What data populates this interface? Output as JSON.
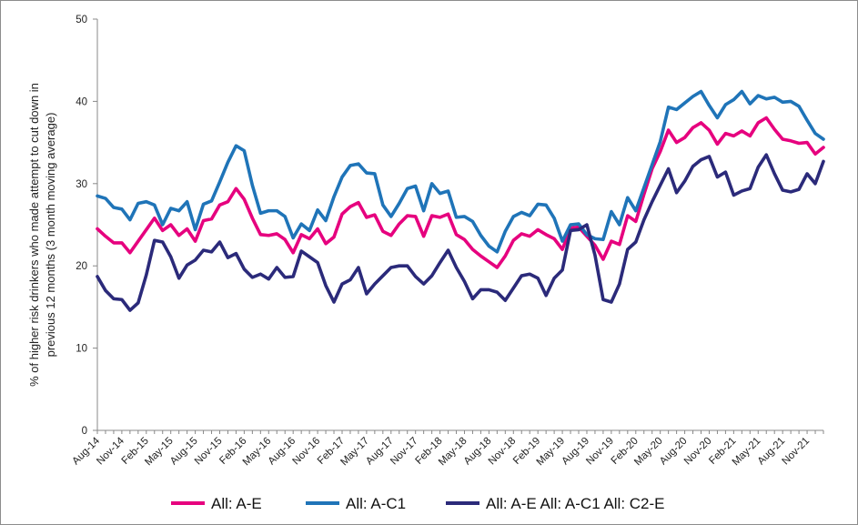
{
  "chart_data": {
    "type": "line",
    "title": "",
    "ylabel_lines": [
      "% of higher risk drinkers who made attempt to cut down in",
      "previous 12 months (3 month moving average)"
    ],
    "xlabel": "",
    "ylim": [
      0,
      50
    ],
    "yticks": [
      0,
      10,
      20,
      30,
      40,
      50
    ],
    "grid": false,
    "legend_position": "bottom",
    "x_tick_labels": [
      "Aug-14",
      "Nov-14",
      "Feb-15",
      "May-15",
      "Aug-15",
      "Nov-15",
      "Feb-16",
      "May-16",
      "Aug-16",
      "Nov-16",
      "Feb-17",
      "May-17",
      "Aug-17",
      "Nov-17",
      "Feb-18",
      "May-18",
      "Aug-18",
      "Nov-18",
      "Feb-19",
      "May-19",
      "Aug-19",
      "Nov-19",
      "Feb-20",
      "May-20",
      "Aug-20",
      "Nov-20",
      "Feb-21",
      "May-21",
      "Aug-21",
      "Nov-21"
    ],
    "series": [
      {
        "name": "All: A-E",
        "color": "#e6007e",
        "values": [
          24.5,
          23.6,
          22.8,
          22.8,
          21.6,
          23.0,
          24.4,
          25.8,
          24.3,
          25.0,
          23.7,
          24.5,
          23.0,
          25.5,
          25.7,
          27.4,
          27.8,
          29.4,
          28.1,
          25.8,
          23.8,
          23.7,
          23.9,
          23.2,
          21.6,
          23.8,
          23.3,
          24.5,
          22.7,
          23.5,
          26.3,
          27.2,
          27.7,
          25.9,
          26.2,
          24.2,
          23.7,
          25.1,
          26.1,
          26.0,
          23.6,
          26.1,
          25.9,
          26.3,
          23.8,
          23.2,
          22.0,
          21.2,
          20.5,
          19.8,
          21.2,
          23.1,
          23.9,
          23.6,
          24.4,
          23.8,
          23.3,
          22.0,
          24.6,
          24.7,
          23.6,
          22.5,
          20.8,
          23.0,
          22.6,
          26.1,
          25.4,
          28.7,
          31.8,
          33.9,
          36.5,
          35.0,
          35.6,
          36.8,
          37.4,
          36.5,
          34.8,
          36.1,
          35.8,
          36.4,
          35.8,
          37.4,
          38.0,
          36.6,
          35.4,
          35.2,
          34.9,
          35.0,
          33.6,
          34.4
        ]
      },
      {
        "name": "All: A-C1",
        "color": "#1f74b8",
        "values": [
          28.5,
          28.2,
          27.1,
          26.9,
          25.6,
          27.6,
          27.8,
          27.4,
          25.0,
          27.0,
          26.7,
          27.8,
          24.4,
          27.5,
          27.9,
          30.2,
          32.6,
          34.6,
          34.0,
          29.8,
          26.4,
          26.7,
          26.7,
          26.0,
          23.4,
          25.1,
          24.3,
          26.8,
          25.5,
          28.4,
          30.8,
          32.2,
          32.4,
          31.3,
          31.2,
          27.4,
          26.0,
          27.6,
          29.4,
          29.7,
          26.7,
          30.0,
          28.8,
          29.1,
          25.9,
          26.0,
          25.4,
          23.7,
          22.4,
          21.7,
          24.2,
          26.0,
          26.5,
          26.1,
          27.5,
          27.4,
          25.8,
          23.0,
          25.0,
          25.1,
          23.8,
          23.3,
          23.2,
          26.6,
          25.0,
          28.3,
          26.7,
          29.5,
          32.3,
          35.1,
          39.3,
          39.0,
          39.8,
          40.6,
          41.2,
          39.5,
          38.0,
          39.6,
          40.2,
          41.2,
          39.7,
          40.7,
          40.3,
          40.5,
          39.9,
          40.0,
          39.4,
          37.7,
          36.1,
          35.4
        ]
      },
      {
        "name": "All: A-E All: A-C1 All: C2-E",
        "color": "#2b2a7a",
        "values": [
          18.7,
          17.0,
          16.0,
          15.9,
          14.6,
          15.5,
          18.9,
          23.1,
          22.9,
          21.1,
          18.5,
          20.1,
          20.7,
          21.9,
          21.7,
          22.9,
          21.0,
          21.5,
          19.6,
          18.6,
          19.0,
          18.4,
          19.8,
          18.6,
          18.7,
          21.8,
          21.1,
          20.4,
          17.6,
          15.6,
          17.8,
          18.3,
          19.8,
          16.6,
          17.8,
          18.8,
          19.8,
          20.0,
          20.0,
          18.7,
          17.8,
          18.8,
          20.4,
          21.9,
          19.8,
          18.1,
          16.0,
          17.1,
          17.1,
          16.8,
          15.8,
          17.3,
          18.8,
          19.0,
          18.5,
          16.4,
          18.5,
          19.5,
          24.3,
          24.4,
          25.0,
          21.3,
          15.9,
          15.6,
          17.8,
          22.0,
          22.9,
          25.6,
          27.8,
          29.8,
          31.8,
          28.9,
          30.3,
          32.1,
          32.9,
          33.3,
          30.8,
          31.4,
          28.6,
          29.1,
          29.4,
          32.0,
          33.5,
          31.2,
          29.2,
          29.0,
          29.3,
          31.2,
          30.0,
          32.7
        ]
      }
    ]
  }
}
